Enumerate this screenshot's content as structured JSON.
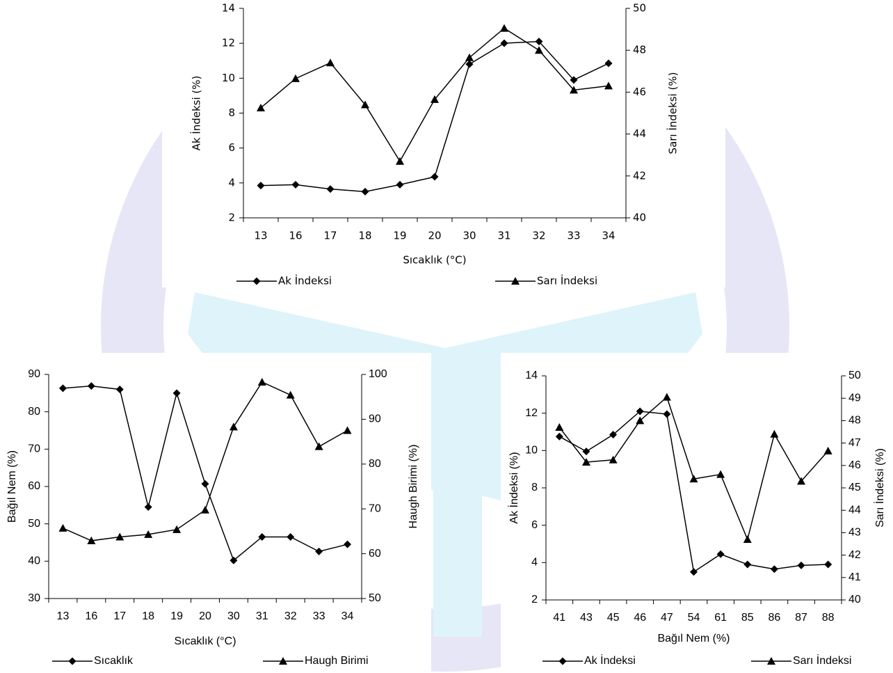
{
  "chart_data": [
    {
      "type": "line",
      "xlabel": "Sıcaklık (°C)",
      "ylabel": "Ak İndeksi (%)",
      "y2label": "Sarı İndeksi (%)",
      "categories": [
        "13",
        "16",
        "17",
        "18",
        "19",
        "20",
        "30",
        "31",
        "32",
        "33",
        "34"
      ],
      "ylim": [
        2,
        14
      ],
      "yticks": [
        2,
        4,
        6,
        8,
        10,
        12,
        14
      ],
      "y2lim": [
        40,
        50
      ],
      "y2ticks": [
        40,
        42,
        44,
        46,
        48,
        50
      ],
      "legend": "bottom",
      "series": [
        {
          "name": "Ak İndeksi",
          "color": "#000000",
          "marker": "diamond",
          "values": [
            3.85,
            3.9,
            3.65,
            3.5,
            3.9,
            4.35,
            10.8,
            12.0,
            12.1,
            9.9,
            10.85
          ]
        },
        {
          "name": "Sarı İndeksi",
          "color": "#000000",
          "marker": "triangle",
          "axis": "y2",
          "values": [
            45.25,
            46.65,
            47.4,
            45.4,
            42.7,
            45.65,
            47.65,
            49.05,
            48.0,
            46.1,
            46.3
          ]
        }
      ]
    },
    {
      "type": "line",
      "xlabel": "Sıcaklık (°C)",
      "ylabel": "Bağıl Nem (%)",
      "y2label": "Haugh Birimi (%)",
      "categories": [
        "13",
        "16",
        "17",
        "18",
        "19",
        "20",
        "30",
        "31",
        "32",
        "33",
        "34"
      ],
      "ylim": [
        30,
        90
      ],
      "yticks": [
        30,
        40,
        50,
        60,
        70,
        80,
        90
      ],
      "y2lim": [
        50,
        100
      ],
      "y2ticks": [
        50,
        60,
        70,
        80,
        90,
        100
      ],
      "legend": "bottom",
      "series": [
        {
          "name": "Sıcaklık",
          "color": "#000000",
          "marker": "diamond",
          "values": [
            86.3,
            86.9,
            86.0,
            54.5,
            85.0,
            60.7,
            40.2,
            46.5,
            46.5,
            42.6,
            44.5
          ]
        },
        {
          "name": "Haugh Birimi",
          "color": "#000000",
          "marker": "triangle",
          "axis": "y2",
          "values": [
            65.7,
            62.9,
            63.75,
            64.3,
            65.4,
            69.75,
            88.3,
            98.3,
            95.4,
            83.9,
            87.5
          ]
        }
      ]
    },
    {
      "type": "line",
      "xlabel": "Bağıl Nem (%)",
      "ylabel": "Ak İndeksi (%)",
      "y2label": "Sarı İndeksi (%)",
      "categories": [
        "41",
        "43",
        "45",
        "46",
        "47",
        "54",
        "61",
        "85",
        "86",
        "87",
        "88"
      ],
      "ylim": [
        2,
        14
      ],
      "yticks": [
        2,
        4,
        6,
        8,
        10,
        12,
        14
      ],
      "y2lim": [
        40,
        50
      ],
      "y2ticks": [
        40,
        41,
        42,
        43,
        44,
        45,
        46,
        47,
        48,
        49,
        50
      ],
      "legend": "bottom",
      "series": [
        {
          "name": "Ak İndeksi",
          "color": "#000000",
          "marker": "diamond",
          "values": [
            10.75,
            9.95,
            10.85,
            12.1,
            11.95,
            3.5,
            4.45,
            3.9,
            3.65,
            3.85,
            3.9
          ]
        },
        {
          "name": "Sarı İndeksi",
          "color": "#000000",
          "marker": "triangle",
          "axis": "y2",
          "values": [
            47.7,
            46.15,
            46.25,
            48.0,
            49.05,
            45.4,
            45.6,
            42.7,
            47.4,
            45.3,
            46.65
          ]
        }
      ]
    }
  ]
}
